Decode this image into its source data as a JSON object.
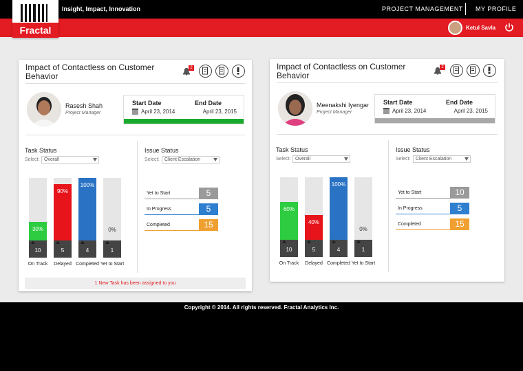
{
  "header": {
    "logo": "Fractal",
    "tagline": "Insight, Impact, Innovation",
    "nav": [
      "PROJECT MANAGEMENT",
      "MY PROFILE"
    ],
    "user": "Ketul Savla"
  },
  "cards": [
    {
      "title": "Impact of Contactless on Customer Behavior",
      "notifications": 2,
      "person": {
        "name": "Rasesh Shah",
        "role": "Project Manager"
      },
      "start_label": "Start Date",
      "start": "April 23, 2014",
      "end_label": "End Date",
      "end": "April 23, 2015",
      "progress_color": "#1aab2e",
      "task_heading": "Task Status",
      "select_label": "Select:",
      "task_filter": "Overall",
      "tasks": [
        {
          "label": "On Track",
          "percent": 30,
          "percent_label": "30%",
          "count": 10,
          "color": "#2ecc40"
        },
        {
          "label": "Delayed",
          "percent": 90,
          "percent_label": "90%",
          "count": 5,
          "color": "#e8141b"
        },
        {
          "label": "Completed",
          "percent": 100,
          "percent_label": "100%",
          "count": 4,
          "color": "#2a73c4"
        },
        {
          "label": "Yet to Start",
          "percent": 0,
          "percent_label": "0%",
          "count": 1,
          "color": "#999999"
        }
      ],
      "issue_heading": "Issue Status",
      "issue_select_label": "Select:",
      "issue_filter": "Client Escalation",
      "issues": [
        {
          "label": "Yet to Start",
          "count": 5,
          "color": "#9a9a9a"
        },
        {
          "label": "In Progress",
          "count": 5,
          "color": "#2f7fd0"
        },
        {
          "label": "Completed",
          "count": 15,
          "color": "#f0a030"
        }
      ],
      "message": "1 New Task has been assigned to you"
    },
    {
      "title": "Impact of Contactless on Customer Behavior",
      "notifications": 2,
      "person": {
        "name": "Meenakshi Iyengar",
        "role": "Project Manager"
      },
      "start_label": "Start Date",
      "start": "April 23, 2014",
      "end_label": "End Date",
      "end": "April 23, 2015",
      "progress_color": "#a8a8a8",
      "task_heading": "Task Status",
      "select_label": "Select:",
      "task_filter": "Overall",
      "tasks": [
        {
          "label": "On Track",
          "percent": 60,
          "percent_label": "60%",
          "count": 10,
          "color": "#2ecc40"
        },
        {
          "label": "Delayed",
          "percent": 40,
          "percent_label": "40%",
          "count": 5,
          "color": "#e8141b"
        },
        {
          "label": "Completed",
          "percent": 100,
          "percent_label": "100%",
          "count": 4,
          "color": "#2a73c4"
        },
        {
          "label": "Yet to Start",
          "percent": 0,
          "percent_label": "0%",
          "count": 1,
          "color": "#999999"
        }
      ],
      "issue_heading": "Issue Status",
      "issue_select_label": "Select:",
      "issue_filter": "Client Escalation",
      "issues": [
        {
          "label": "Yet to Start",
          "count": 10,
          "color": "#9a9a9a"
        },
        {
          "label": "In Progress",
          "count": 5,
          "color": "#2f7fd0"
        },
        {
          "label": "Completed",
          "count": 15,
          "color": "#f0a030"
        }
      ]
    }
  ],
  "footer": "Copyright © 2014. All rights reserved. Fractal Analytics Inc."
}
